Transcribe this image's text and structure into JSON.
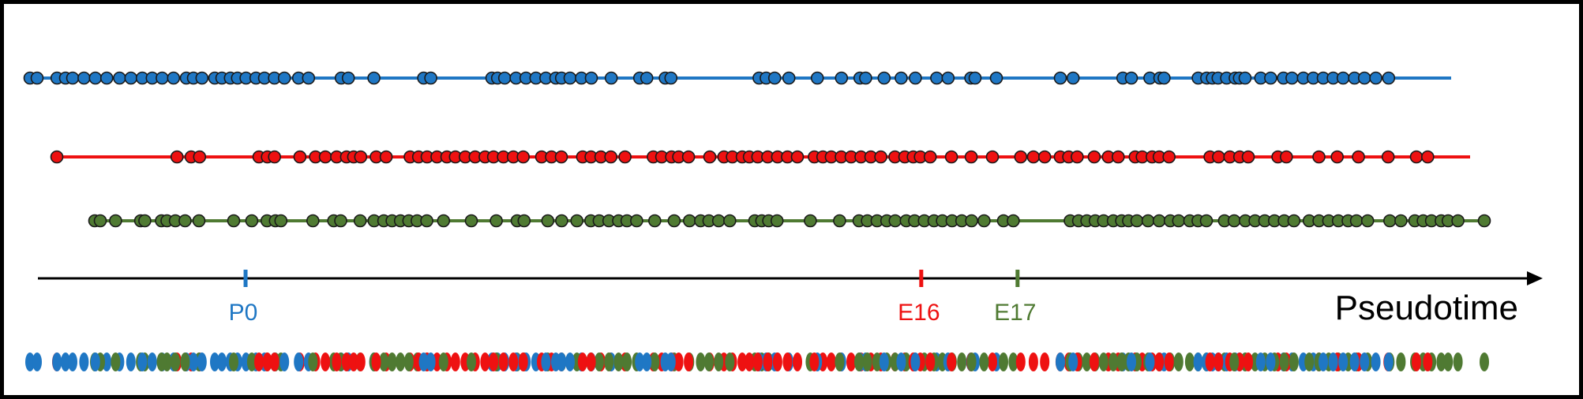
{
  "colors": {
    "blue": "#1f77c4",
    "red": "#ee1111",
    "green": "#4f7a32",
    "outline": "#1a1a1a",
    "axis": "#000000"
  },
  "axis": {
    "label": "Pseudotime",
    "ticks": [
      {
        "label": "P0",
        "value": 0.138,
        "color": "blue"
      },
      {
        "label": "E16",
        "value": 0.587,
        "color": "red"
      },
      {
        "label": "E17",
        "value": 0.651,
        "color": "green"
      }
    ]
  },
  "chart_data": {
    "type": "scatter",
    "xlabel": "Pseudotime",
    "xlim": [
      0,
      1
    ],
    "series": [
      {
        "color": "blue",
        "x": [
          0.0,
          0.005,
          0.019,
          0.025,
          0.03,
          0.038,
          0.046,
          0.054,
          0.063,
          0.071,
          0.079,
          0.086,
          0.093,
          0.101,
          0.11,
          0.115,
          0.121,
          0.13,
          0.135,
          0.141,
          0.146,
          0.152,
          0.159,
          0.165,
          0.172,
          0.179,
          0.189,
          0.196,
          0.219,
          0.224,
          0.242,
          0.277,
          0.282,
          0.325,
          0.329,
          0.334,
          0.342,
          0.349,
          0.356,
          0.363,
          0.37,
          0.374,
          0.38,
          0.388,
          0.395,
          0.409,
          0.429,
          0.434,
          0.447,
          0.451,
          0.513,
          0.518,
          0.524,
          0.534,
          0.554,
          0.571,
          0.584,
          0.588,
          0.601,
          0.613,
          0.623,
          0.638,
          0.646,
          0.662,
          0.665,
          0.68,
          0.725,
          0.734,
          0.769,
          0.775,
          0.788,
          0.795,
          0.798,
          0.822,
          0.828,
          0.832,
          0.836,
          0.842,
          0.848,
          0.851,
          0.855,
          0.866,
          0.873,
          0.882,
          0.888,
          0.896,
          0.903,
          0.91,
          0.917,
          0.924,
          0.932,
          0.939,
          0.947,
          0.956
        ]
      },
      {
        "color": "red",
        "x": [
          0.0,
          0.085,
          0.095,
          0.101,
          0.143,
          0.149,
          0.154,
          0.172,
          0.183,
          0.19,
          0.198,
          0.205,
          0.21,
          0.215,
          0.226,
          0.233,
          0.25,
          0.256,
          0.262,
          0.269,
          0.276,
          0.282,
          0.289,
          0.296,
          0.303,
          0.309,
          0.316,
          0.323,
          0.33,
          0.343,
          0.35,
          0.357,
          0.372,
          0.378,
          0.385,
          0.392,
          0.402,
          0.422,
          0.428,
          0.435,
          0.44,
          0.447,
          0.462,
          0.472,
          0.478,
          0.485,
          0.49,
          0.496,
          0.503,
          0.51,
          0.517,
          0.524,
          0.536,
          0.542,
          0.548,
          0.555,
          0.562,
          0.569,
          0.576,
          0.583,
          0.593,
          0.6,
          0.606,
          0.611,
          0.618,
          0.633,
          0.647,
          0.662,
          0.682,
          0.691,
          0.699,
          0.71,
          0.716,
          0.722,
          0.734,
          0.744,
          0.751,
          0.763,
          0.768,
          0.775,
          0.78,
          0.787,
          0.816,
          0.822,
          0.83,
          0.837,
          0.843,
          0.864,
          0.87,
          0.893,
          0.906,
          0.921,
          0.942,
          0.962,
          0.97
        ]
      },
      {
        "color": "green",
        "x": [
          0.0,
          0.004,
          0.015,
          0.033,
          0.036,
          0.048,
          0.052,
          0.058,
          0.065,
          0.075,
          0.1,
          0.113,
          0.124,
          0.13,
          0.134,
          0.157,
          0.172,
          0.177,
          0.191,
          0.201,
          0.208,
          0.214,
          0.22,
          0.226,
          0.232,
          0.239,
          0.251,
          0.271,
          0.289,
          0.304,
          0.309,
          0.326,
          0.336,
          0.347,
          0.357,
          0.363,
          0.37,
          0.377,
          0.383,
          0.39,
          0.403,
          0.417,
          0.428,
          0.436,
          0.442,
          0.449,
          0.457,
          0.475,
          0.48,
          0.485,
          0.491,
          0.515,
          0.536,
          0.55,
          0.556,
          0.563,
          0.57,
          0.576,
          0.584,
          0.59,
          0.597,
          0.604,
          0.61,
          0.617,
          0.624,
          0.631,
          0.64,
          0.654,
          0.661,
          0.702,
          0.708,
          0.714,
          0.72,
          0.726,
          0.733,
          0.739,
          0.744,
          0.75,
          0.758,
          0.766,
          0.774,
          0.78,
          0.788,
          0.794,
          0.8,
          0.813,
          0.82,
          0.828,
          0.835,
          0.842,
          0.849,
          0.856,
          0.863,
          0.874,
          0.881,
          0.888,
          0.895,
          0.902,
          0.908,
          0.916,
          0.932,
          0.94,
          0.95,
          0.956,
          0.962,
          0.969,
          0.974,
          0.981,
          1.0
        ]
      }
    ]
  }
}
